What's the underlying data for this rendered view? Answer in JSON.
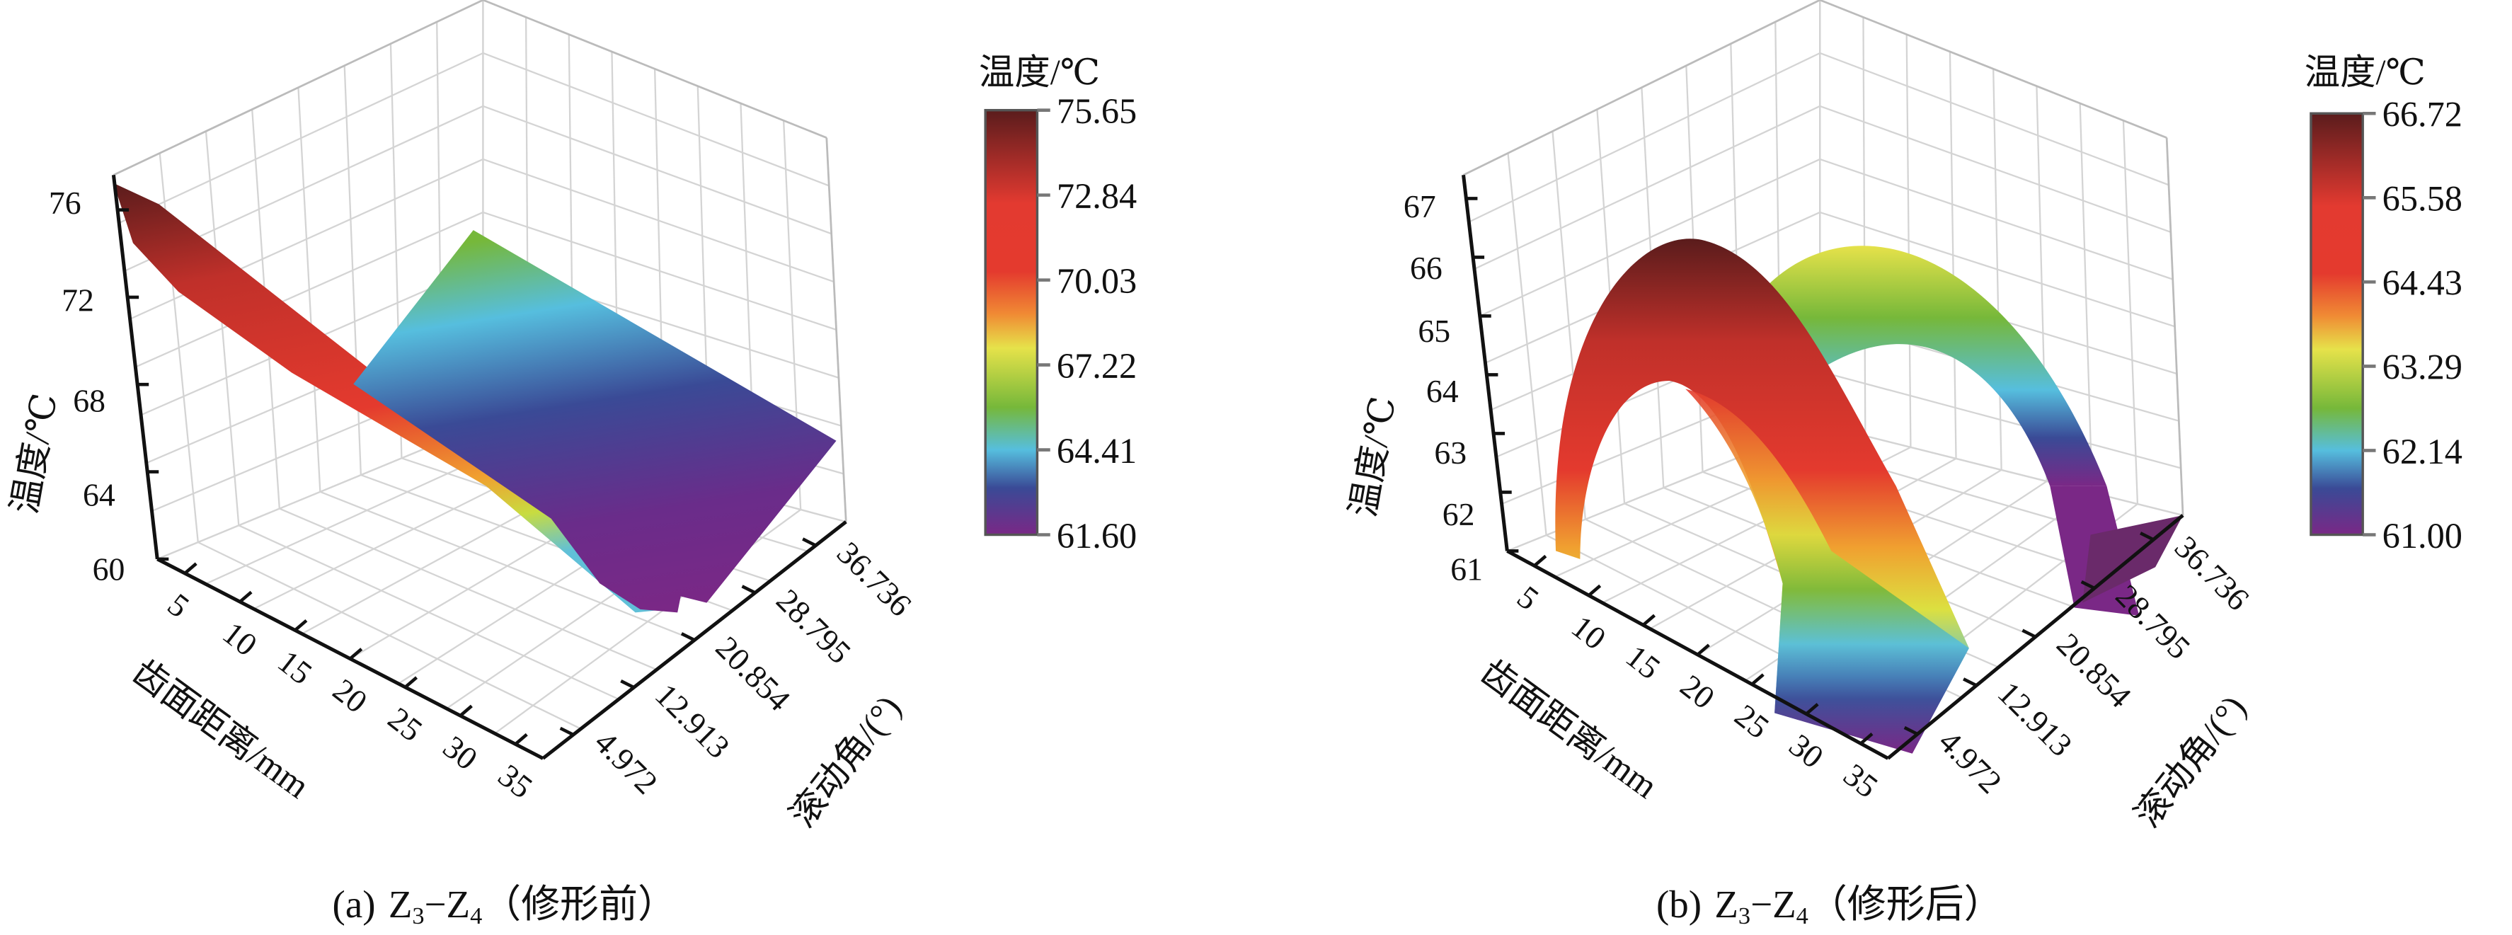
{
  "chart_data": [
    {
      "type": "surface",
      "panel": "a",
      "caption": {
        "prefix": "(a)",
        "z3": "Z",
        "sub3": "3",
        "dash": "−",
        "z4": "Z",
        "sub4": "4",
        "note": "（修形前）"
      },
      "xlabel": "齿面距离/mm",
      "ylabel": "滚动角/(°)",
      "zlabel": "温度/℃",
      "x_ticks": [
        "5",
        "10",
        "15",
        "20",
        "25",
        "30",
        "35"
      ],
      "y_ticks": [
        "4.972",
        "12.913",
        "20.854",
        "28.795",
        "36.736"
      ],
      "z_ticks": [
        "60",
        "64",
        "68",
        "72",
        "76"
      ],
      "zlim": [
        60,
        76
      ],
      "colorbar": {
        "title": "温度/℃",
        "ticks": [
          "75.65",
          "72.84",
          "70.03",
          "67.22",
          "64.41",
          "61.60"
        ],
        "min": 61.6,
        "max": 75.65
      },
      "description_values": {
        "z_max": 75.65,
        "z_min": 61.6
      }
    },
    {
      "type": "surface",
      "panel": "b",
      "caption": {
        "prefix": "(b)",
        "z3": "Z",
        "sub3": "3",
        "dash": "−",
        "z4": "Z",
        "sub4": "4",
        "note": "（修形后）"
      },
      "xlabel": "齿面距离/mm",
      "ylabel": "滚动角/(°)",
      "zlabel": "温度/℃",
      "x_ticks": [
        "5",
        "10",
        "15",
        "20",
        "25",
        "30",
        "35"
      ],
      "y_ticks": [
        "4.972",
        "12.913",
        "20.854",
        "28.795",
        "36.736"
      ],
      "z_ticks": [
        "61",
        "62",
        "63",
        "64",
        "65",
        "66",
        "67"
      ],
      "zlim": [
        61,
        67
      ],
      "colorbar": {
        "title": "温度/℃",
        "ticks": [
          "66.72",
          "65.58",
          "64.43",
          "63.29",
          "62.14",
          "61.00"
        ],
        "min": 61.0,
        "max": 66.72
      },
      "description_values": {
        "z_max": 66.72,
        "z_min": 61.0
      }
    }
  ]
}
